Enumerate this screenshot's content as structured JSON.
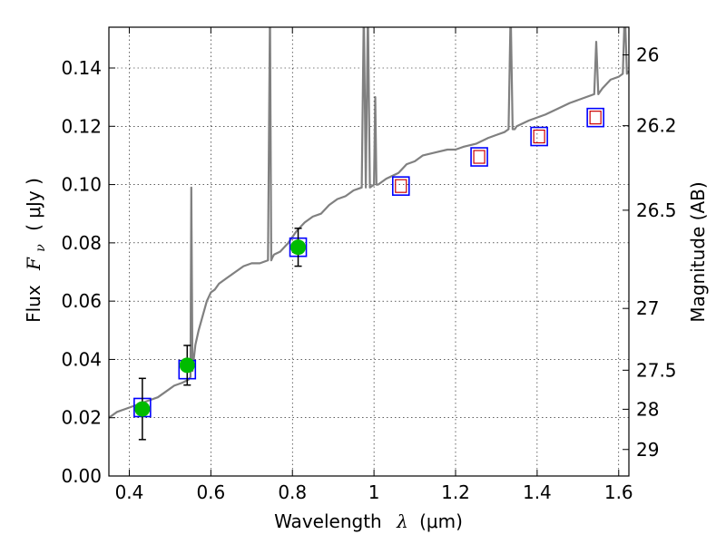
{
  "chart_data": {
    "type": "line",
    "xlabel_prefix": "Wavelength",
    "xlabel_sym": "λ",
    "xlabel_unit": "(μm)",
    "ylabel_prefix": "Flux",
    "ylabel_sym": "F",
    "ylabel_sub": "ν",
    "ylabel_unit": "( μJy )",
    "y2label": "Magnitude (AB)",
    "xlim": [
      0.35,
      1.625
    ],
    "ylim": [
      0.0,
      0.154
    ],
    "xticks": [
      0.4,
      0.6,
      0.8,
      1.0,
      1.2,
      1.4,
      1.6
    ],
    "xtick_labels": [
      "0.4",
      "0.6",
      "0.8",
      "1",
      "1.2",
      "1.4",
      "1.6"
    ],
    "yticks": [
      0.0,
      0.02,
      0.04,
      0.06,
      0.08,
      0.1,
      0.12,
      0.14
    ],
    "ytick_labels": [
      "0.00",
      "0.02",
      "0.04",
      "0.06",
      "0.08",
      "0.10",
      "0.12",
      "0.14"
    ],
    "right_ticks": [
      {
        "label": "26",
        "flux": 0.1445
      },
      {
        "label": "26.2",
        "flux": 0.1202
      },
      {
        "label": "26.5",
        "flux": 0.0912
      },
      {
        "label": "27",
        "flux": 0.0575
      },
      {
        "label": "27.5",
        "flux": 0.0363
      },
      {
        "label": "28",
        "flux": 0.0229
      },
      {
        "label": "29",
        "flux": 0.0091
      }
    ],
    "grid": true,
    "series": [
      {
        "name": "model-spectrum",
        "color": "#808080",
        "x": [
          0.35,
          0.37,
          0.39,
          0.41,
          0.43,
          0.45,
          0.47,
          0.49,
          0.51,
          0.53,
          0.545,
          0.55,
          0.552,
          0.555,
          0.558,
          0.562,
          0.57,
          0.58,
          0.59,
          0.6,
          0.61,
          0.62,
          0.64,
          0.66,
          0.68,
          0.7,
          0.72,
          0.74,
          0.745,
          0.748,
          0.751,
          0.755,
          0.77,
          0.79,
          0.81,
          0.83,
          0.85,
          0.87,
          0.89,
          0.91,
          0.93,
          0.95,
          0.97,
          0.975,
          0.98,
          0.985,
          0.99,
          1.0,
          1.003,
          1.006,
          1.01,
          1.03,
          1.06,
          1.08,
          1.1,
          1.12,
          1.15,
          1.18,
          1.2,
          1.22,
          1.25,
          1.28,
          1.3,
          1.32,
          1.33,
          1.335,
          1.34,
          1.345,
          1.35,
          1.38,
          1.4,
          1.42,
          1.45,
          1.48,
          1.5,
          1.52,
          1.54,
          1.545,
          1.55,
          1.555,
          1.56,
          1.58,
          1.6,
          1.61,
          1.615,
          1.62,
          1.625
        ],
        "y": [
          0.02,
          0.022,
          0.023,
          0.024,
          0.025,
          0.026,
          0.027,
          0.029,
          0.031,
          0.032,
          0.033,
          0.034,
          0.099,
          0.036,
          0.04,
          0.045,
          0.05,
          0.055,
          0.06,
          0.063,
          0.064,
          0.066,
          0.068,
          0.07,
          0.072,
          0.073,
          0.073,
          0.074,
          0.16,
          0.074,
          0.075,
          0.076,
          0.077,
          0.08,
          0.084,
          0.087,
          0.089,
          0.09,
          0.093,
          0.095,
          0.096,
          0.098,
          0.099,
          0.16,
          0.099,
          0.16,
          0.099,
          0.1,
          0.13,
          0.1,
          0.1,
          0.102,
          0.104,
          0.107,
          0.108,
          0.11,
          0.111,
          0.112,
          0.112,
          0.113,
          0.114,
          0.116,
          0.117,
          0.118,
          0.119,
          0.16,
          0.119,
          0.119,
          0.12,
          0.122,
          0.123,
          0.124,
          0.126,
          0.128,
          0.129,
          0.13,
          0.131,
          0.149,
          0.131,
          0.132,
          0.133,
          0.136,
          0.137,
          0.138,
          0.16,
          0.138,
          0.139
        ]
      },
      {
        "name": "model-points",
        "marker": "open-square",
        "color": "#0000ff",
        "x": [
          0.432,
          0.542,
          0.814,
          1.066,
          1.258,
          1.405,
          1.543
        ],
        "y": [
          0.0235,
          0.0365,
          0.0785,
          0.0995,
          0.1095,
          0.1165,
          0.123
        ]
      },
      {
        "name": "upper-limits",
        "marker": "open-square-small",
        "color": "#cc0000",
        "x": [
          1.066,
          1.258,
          1.405,
          1.543
        ],
        "y": [
          0.0995,
          0.1095,
          0.1165,
          0.123
        ]
      },
      {
        "name": "observed",
        "marker": "filled-circle",
        "color": "#00bb00",
        "x": [
          0.432,
          0.542,
          0.814
        ],
        "y": [
          0.023,
          0.038,
          0.0785
        ],
        "yerr": [
          0.0105,
          0.0068,
          0.0065
        ]
      }
    ]
  }
}
